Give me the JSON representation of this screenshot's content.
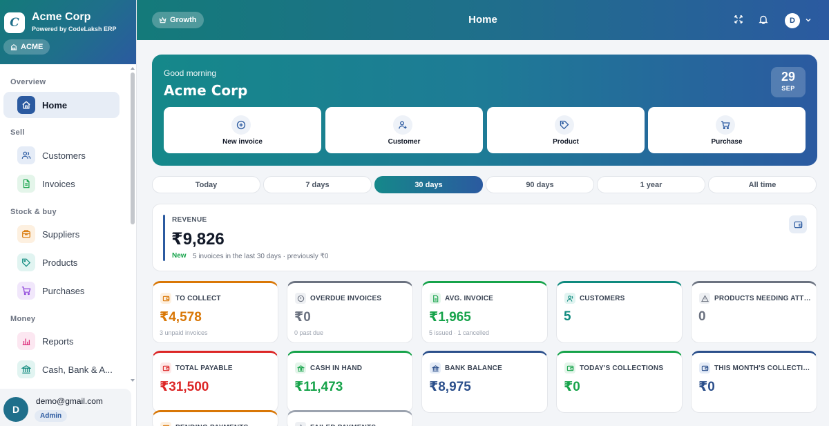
{
  "brand": {
    "logo_text": "C",
    "title": "Acme Corp",
    "subtitle": "Powered by CodeLaksh ERP",
    "org_chip": "ACME"
  },
  "sidebar": {
    "sections": [
      "Overview",
      "Sell",
      "Stock & buy",
      "Money"
    ],
    "items": [
      {
        "label": "Home",
        "icon": "home-icon",
        "color": "#2b5aa0",
        "bg": "#2b5aa0"
      },
      {
        "label": "Customers",
        "icon": "users-icon",
        "color": "#2b5aa0",
        "bg": "#e5ecf7"
      },
      {
        "label": "Invoices",
        "icon": "document-icon",
        "color": "#16a34a",
        "bg": "#e4f5ea"
      },
      {
        "label": "Suppliers",
        "icon": "box-icon",
        "color": "#d97706",
        "bg": "#fdf0e0"
      },
      {
        "label": "Products",
        "icon": "tag-icon",
        "color": "#0f8a7e",
        "bg": "#e1f4f1"
      },
      {
        "label": "Purchases",
        "icon": "cart-icon",
        "color": "#8b3fd9",
        "bg": "#f1e7fb"
      },
      {
        "label": "Reports",
        "icon": "chart-icon",
        "color": "#db2777",
        "bg": "#fce7f1"
      },
      {
        "label": "Cash, Bank & A...",
        "icon": "bank-icon",
        "color": "#0f8a7e",
        "bg": "#e1f4f1"
      }
    ]
  },
  "user": {
    "initial": "D",
    "email": "demo@gmail.com",
    "role": "Admin"
  },
  "header": {
    "plan": "Growth",
    "title": "Home",
    "avatar_initial": "D"
  },
  "hero": {
    "greeting": "Good morning",
    "name": "Acme Corp",
    "date_day": "29",
    "date_month": "SEP",
    "actions": [
      "New invoice",
      "Customer",
      "Product",
      "Purchase"
    ]
  },
  "periods": [
    "Today",
    "7 days",
    "30 days",
    "90 days",
    "1 year",
    "All time"
  ],
  "active_period": "30 days",
  "revenue": {
    "label": "REVENUE",
    "value": "₹9,826",
    "badge": "New",
    "note": "5 invoices in the last 30 days · previously ₹0"
  },
  "cards": [
    {
      "label": "TO COLLECT",
      "value": "₹4,578",
      "note": "3 unpaid invoices",
      "color": "#d97706",
      "icon_bg": "#fdf0e0"
    },
    {
      "label": "OVERDUE INVOICES",
      "value": "₹0",
      "note": "0 past due",
      "color": "#6b7280",
      "icon_bg": "#eef0f3"
    },
    {
      "label": "AVG. INVOICE",
      "value": "₹1,965",
      "note": "5 issued · 1 cancelled",
      "color": "#16a34a",
      "icon_bg": "#e4f5ea"
    },
    {
      "label": "CUSTOMERS",
      "value": "5",
      "note": "",
      "color": "#0f8a7e",
      "icon_bg": "#e1f4f1"
    },
    {
      "label": "PRODUCTS NEEDING ATTENTION",
      "value": "0",
      "note": "",
      "color": "#6b7280",
      "icon_bg": "#eef0f3"
    },
    {
      "label": "TOTAL PAYABLE",
      "value": "₹31,500",
      "note": "",
      "color": "#dc2626",
      "icon_bg": "#fde8e8"
    },
    {
      "label": "CASH IN HAND",
      "value": "₹11,473",
      "note": "",
      "color": "#16a34a",
      "icon_bg": "#e4f5ea"
    },
    {
      "label": "BANK BALANCE",
      "value": "₹8,975",
      "note": "",
      "color": "#2b4f8b",
      "icon_bg": "#e5ecf7"
    },
    {
      "label": "TODAY'S COLLECTIONS",
      "value": "₹0",
      "note": "",
      "color": "#16a34a",
      "icon_bg": "#e4f5ea"
    },
    {
      "label": "THIS MONTH'S COLLECTIONS",
      "value": "₹0",
      "note": "",
      "color": "#2b4f8b",
      "icon_bg": "#e5ecf7"
    },
    {
      "label": "PENDING PAYMENTS",
      "value": "",
      "note": "",
      "color": "#d97706",
      "icon_bg": "#fdf0e0"
    },
    {
      "label": "FAILED PAYMENTS",
      "value": "",
      "note": "",
      "color": "#9ca3af",
      "icon_bg": "#eef0f3"
    }
  ]
}
